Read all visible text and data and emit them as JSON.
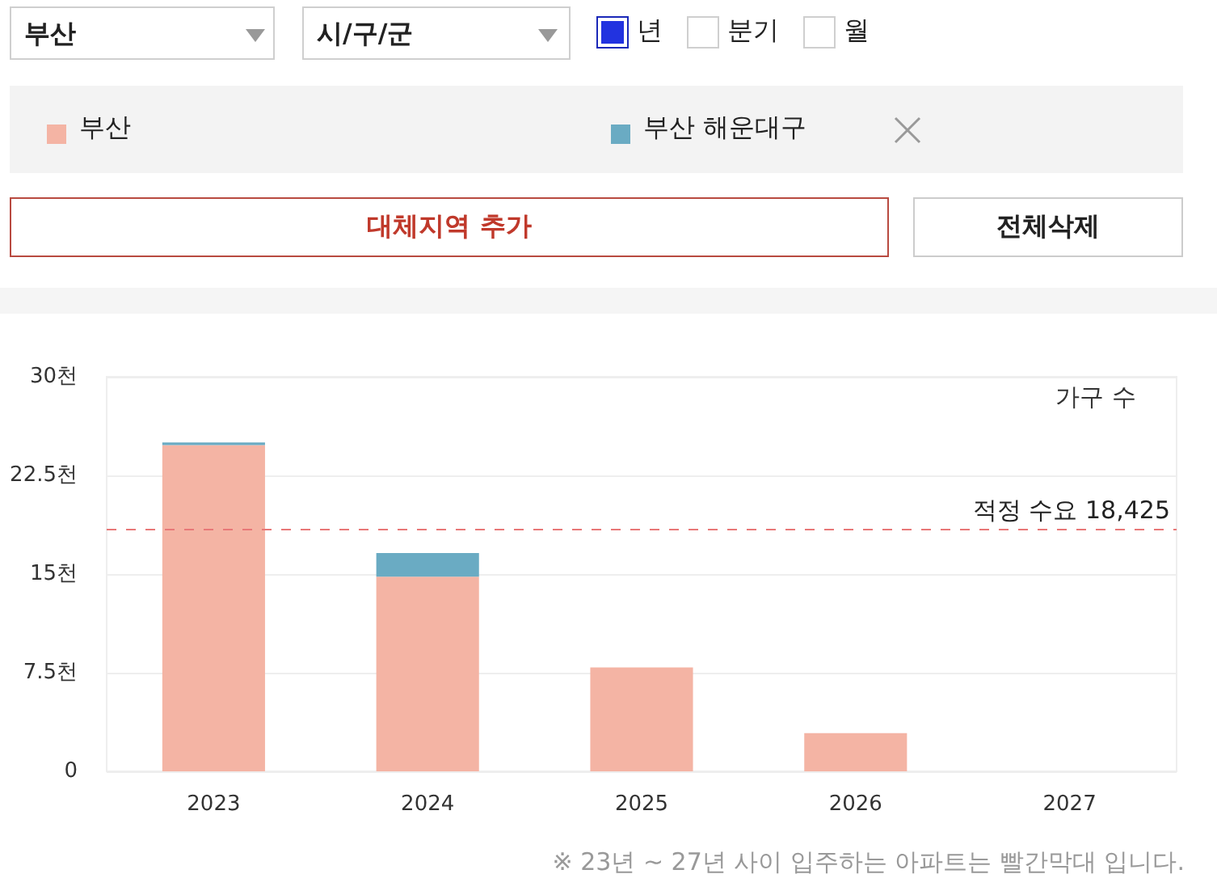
{
  "chart_data": {
    "type": "bar",
    "stacked": true,
    "categories": [
      "2023",
      "2024",
      "2025",
      "2026",
      "2027"
    ],
    "series": [
      {
        "name": "부산",
        "color": "#f4b4a4",
        "values": [
          24.8,
          14.8,
          7.9,
          2.9,
          0
        ]
      },
      {
        "name": "부산 해운대구",
        "color": "#6aabc3",
        "values": [
          0.2,
          1.8,
          0,
          0,
          0
        ]
      }
    ],
    "ylabel": "가구 수",
    "ylim": [
      0,
      30
    ],
    "yticks": [
      0,
      {
        "value": 7.5,
        "label": "7.5천"
      },
      {
        "value": 15,
        "label": "15천"
      },
      {
        "value": 22.5,
        "label": "22.5천"
      },
      {
        "value": 30,
        "label": "30천"
      }
    ],
    "grid": "y",
    "legend": "top",
    "ref_lines": [
      {
        "axis": "y",
        "value": 18.425,
        "label": "적정 수요 18,425",
        "color": "#e87878",
        "line_style": "dashed"
      }
    ],
    "annotations": [
      "부산",
      "시/구/군",
      "년",
      "분기",
      "월",
      "대체지역 추가",
      "전체삭제",
      "※ 23년 ~ 27년 사이 입주하는 아파트는 빨간막대 입니다."
    ]
  }
}
